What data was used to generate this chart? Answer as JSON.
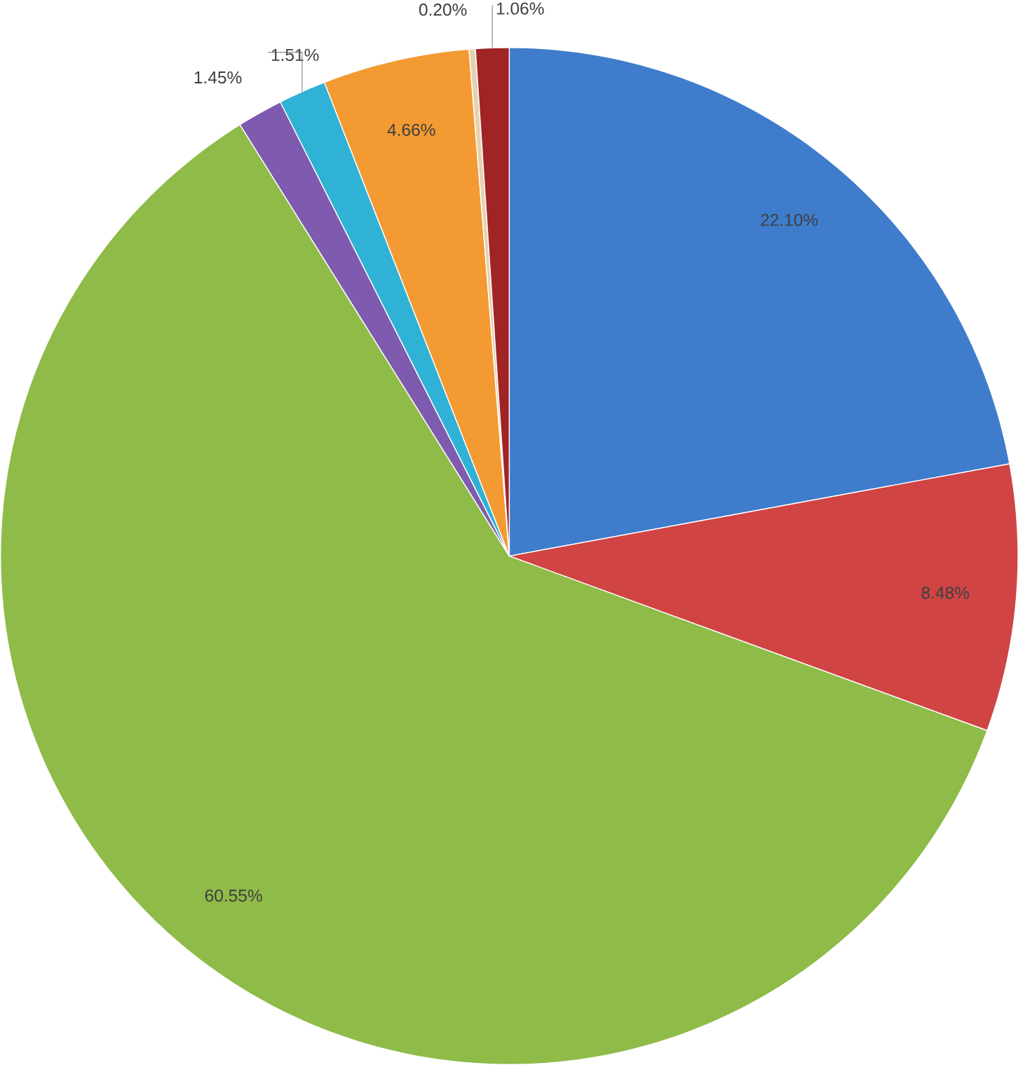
{
  "chart_data": {
    "type": "pie",
    "categories": [
      null,
      null,
      null,
      null,
      null,
      null,
      null,
      null
    ],
    "values": [
      22.1,
      8.48,
      60.55,
      1.45,
      1.51,
      4.66,
      0.2,
      1.06
    ],
    "value_labels": [
      "22.10%",
      "8.48%",
      "60.55%",
      "1.45%",
      "1.51%",
      "4.66%",
      "0.20%",
      "1.06%"
    ],
    "colors": [
      "#3f7ccc",
      "#d04444",
      "#8fbb48",
      "#7e5bae",
      "#30b2d6",
      "#f39a32",
      "#e6d2b0",
      "#a02424"
    ]
  }
}
